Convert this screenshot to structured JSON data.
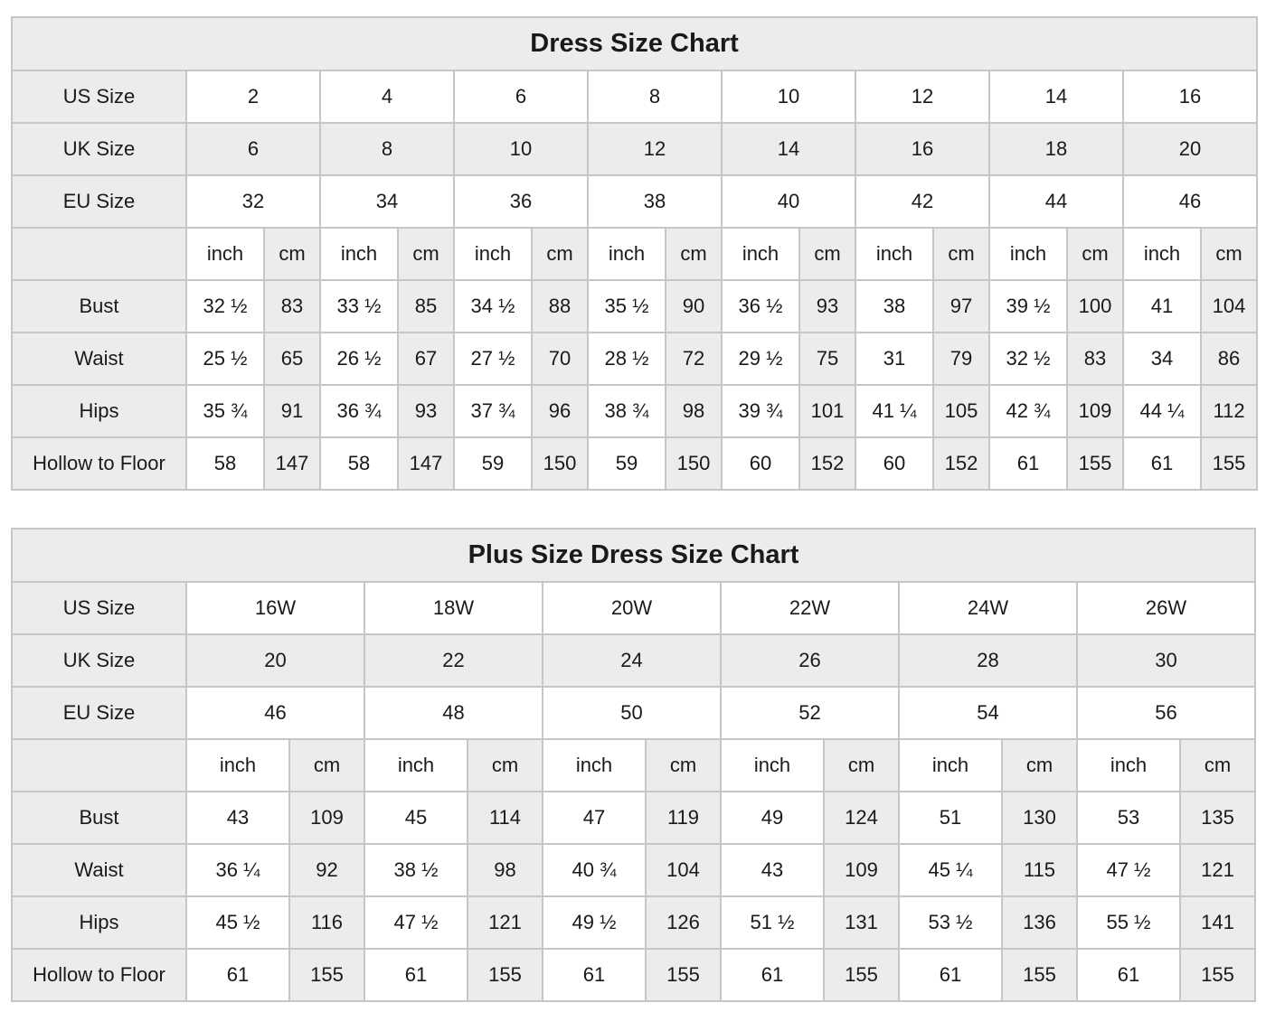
{
  "page": {
    "background": "#ffffff"
  },
  "colors": {
    "shade": "#ececec",
    "border": "#c6c6c6",
    "text": "#1a1a1a",
    "cell_white": "#ffffff"
  },
  "units": [
    "inch",
    "cm"
  ],
  "chart_data": [
    {
      "type": "table",
      "title": "Dress Size Chart",
      "size_rows": [
        {
          "label": "US Size",
          "shaded": false,
          "values": [
            "2",
            "4",
            "6",
            "8",
            "10",
            "12",
            "14",
            "16"
          ]
        },
        {
          "label": "UK Size",
          "shaded": true,
          "values": [
            "6",
            "8",
            "10",
            "12",
            "14",
            "16",
            "18",
            "20"
          ]
        },
        {
          "label": "EU Size",
          "shaded": false,
          "values": [
            "32",
            "34",
            "36",
            "38",
            "40",
            "42",
            "44",
            "46"
          ]
        }
      ],
      "measure_rows": [
        {
          "label": "Bust",
          "values": [
            [
              "32 ½",
              "83"
            ],
            [
              "33 ½",
              "85"
            ],
            [
              "34 ½",
              "88"
            ],
            [
              "35 ½",
              "90"
            ],
            [
              "36 ½",
              "93"
            ],
            [
              "38",
              "97"
            ],
            [
              "39 ½",
              "100"
            ],
            [
              "41",
              "104"
            ]
          ]
        },
        {
          "label": "Waist",
          "values": [
            [
              "25 ½",
              "65"
            ],
            [
              "26 ½",
              "67"
            ],
            [
              "27 ½",
              "70"
            ],
            [
              "28 ½",
              "72"
            ],
            [
              "29 ½",
              "75"
            ],
            [
              "31",
              "79"
            ],
            [
              "32 ½",
              "83"
            ],
            [
              "34",
              "86"
            ]
          ]
        },
        {
          "label": "Hips",
          "values": [
            [
              "35 ¾",
              "91"
            ],
            [
              "36 ¾",
              "93"
            ],
            [
              "37 ¾",
              "96"
            ],
            [
              "38 ¾",
              "98"
            ],
            [
              "39 ¾",
              "101"
            ],
            [
              "41 ¼",
              "105"
            ],
            [
              "42 ¾",
              "109"
            ],
            [
              "44 ¼",
              "112"
            ]
          ]
        },
        {
          "label": "Hollow to Floor",
          "values": [
            [
              "58",
              "147"
            ],
            [
              "58",
              "147"
            ],
            [
              "59",
              "150"
            ],
            [
              "59",
              "150"
            ],
            [
              "60",
              "152"
            ],
            [
              "60",
              "152"
            ],
            [
              "61",
              "155"
            ],
            [
              "61",
              "155"
            ]
          ]
        }
      ]
    },
    {
      "type": "table",
      "title": "Plus Size Dress Size Chart",
      "size_rows": [
        {
          "label": "US Size",
          "shaded": false,
          "values": [
            "16W",
            "18W",
            "20W",
            "22W",
            "24W",
            "26W"
          ]
        },
        {
          "label": "UK Size",
          "shaded": true,
          "values": [
            "20",
            "22",
            "24",
            "26",
            "28",
            "30"
          ]
        },
        {
          "label": "EU Size",
          "shaded": false,
          "values": [
            "46",
            "48",
            "50",
            "52",
            "54",
            "56"
          ]
        }
      ],
      "measure_rows": [
        {
          "label": "Bust",
          "values": [
            [
              "43",
              "109"
            ],
            [
              "45",
              "114"
            ],
            [
              "47",
              "119"
            ],
            [
              "49",
              "124"
            ],
            [
              "51",
              "130"
            ],
            [
              "53",
              "135"
            ]
          ]
        },
        {
          "label": "Waist",
          "values": [
            [
              "36 ¼",
              "92"
            ],
            [
              "38 ½",
              "98"
            ],
            [
              "40 ¾",
              "104"
            ],
            [
              "43",
              "109"
            ],
            [
              "45 ¼",
              "115"
            ],
            [
              "47 ½",
              "121"
            ]
          ]
        },
        {
          "label": "Hips",
          "values": [
            [
              "45 ½",
              "116"
            ],
            [
              "47 ½",
              "121"
            ],
            [
              "49 ½",
              "126"
            ],
            [
              "51 ½",
              "131"
            ],
            [
              "53 ½",
              "136"
            ],
            [
              "55 ½",
              "141"
            ]
          ]
        },
        {
          "label": "Hollow to Floor",
          "values": [
            [
              "61",
              "155"
            ],
            [
              "61",
              "155"
            ],
            [
              "61",
              "155"
            ],
            [
              "61",
              "155"
            ],
            [
              "61",
              "155"
            ],
            [
              "61",
              "155"
            ]
          ]
        }
      ]
    }
  ]
}
